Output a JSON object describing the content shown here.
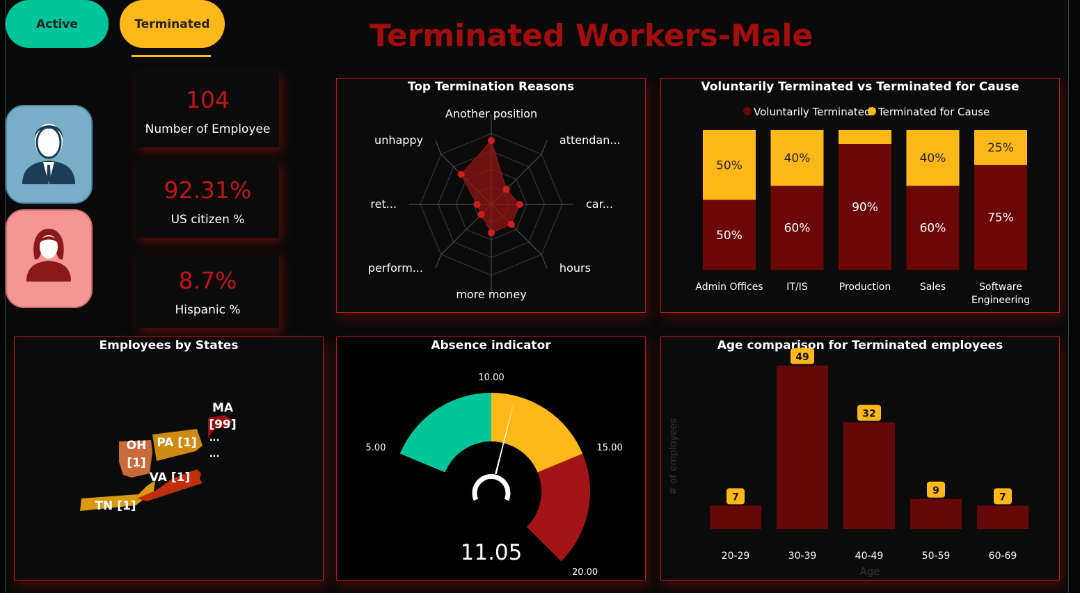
{
  "tabs": {
    "active": "Active",
    "terminated": "Terminated"
  },
  "title": "Terminated Workers-Male",
  "colors": {
    "dark_red": "#6b0707",
    "yellow": "#ffb81a",
    "teal": "#00c49a",
    "red": "#a31417"
  },
  "icons": {
    "male": "male-avatar-icon",
    "female": "female-avatar-icon"
  },
  "kpis": [
    {
      "value": "104",
      "label": "Number of Employee"
    },
    {
      "value": "92.31%",
      "label": "US citizen %"
    },
    {
      "value": "8.7%",
      "label": "Hispanic %"
    }
  ],
  "radar": {
    "title": "Top Termination Reasons",
    "axes": [
      "Another position",
      "attendan...",
      "car...",
      "hours",
      "more money",
      "perform...",
      "ret...",
      "unhappy"
    ],
    "values": [
      9,
      3,
      4,
      4,
      4,
      2,
      2,
      6
    ],
    "max": 10,
    "rings": 4
  },
  "stacked": {
    "title": "Voluntarily Terminated vs Terminated for Cause",
    "legend": [
      "Voluntarily Terminated",
      "Terminated for Cause"
    ],
    "categories": [
      [
        "Admin Offices"
      ],
      [
        "IT/IS"
      ],
      [
        "Production"
      ],
      [
        "Sales"
      ],
      [
        "Software",
        "Engineering"
      ]
    ],
    "voluntary": [
      50,
      60,
      90,
      60,
      75
    ],
    "cause": [
      50,
      40,
      10,
      40,
      25
    ],
    "voluntary_labels": [
      "50%",
      "60%",
      "90%",
      "60%",
      "75%"
    ],
    "cause_labels": [
      "50%",
      "40%",
      "",
      "40%",
      "25%"
    ]
  },
  "map": {
    "title": "Employees by States",
    "labels": [
      "MA",
      "[99]",
      "OH",
      "[1]",
      "PA [1]",
      "VA [1]",
      "TN [1]",
      "...",
      "..."
    ]
  },
  "gauge": {
    "title": "Absence indicator",
    "value": 11.05,
    "value_text": "11.05",
    "min": 0,
    "max": 20,
    "bands": [
      5,
      10,
      15,
      20
    ],
    "tick_labels": [
      "5.00",
      "10.00",
      "15.00",
      "20.00"
    ]
  },
  "chart_data": {
    "type": "bar",
    "title": "Age comparison for Terminated employees",
    "xlabel": "Age",
    "ylabel": "# of employees",
    "categories": [
      "20-29",
      "30-39",
      "40-49",
      "50-59",
      "60-69"
    ],
    "values": [
      7,
      49,
      32,
      9,
      7
    ],
    "value_labels": [
      "7",
      "49",
      "32",
      "9",
      "7"
    ]
  }
}
